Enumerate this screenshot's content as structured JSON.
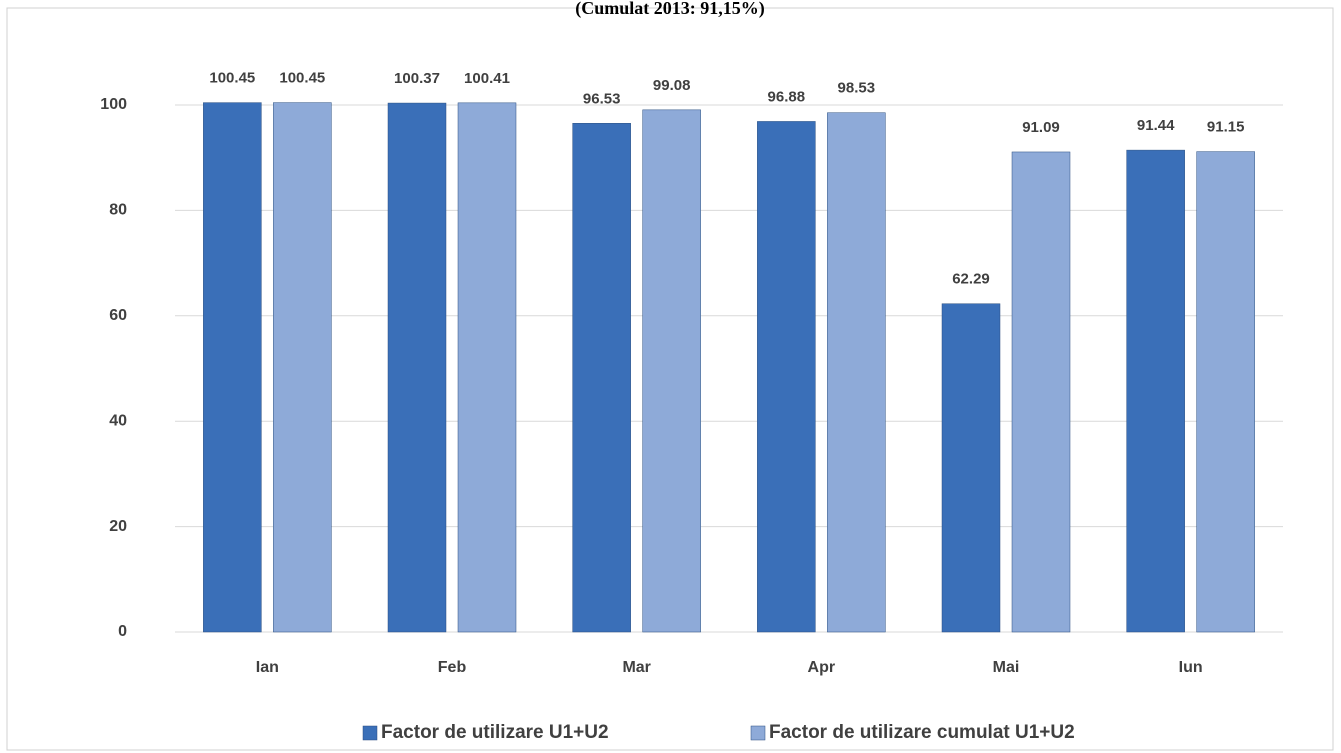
{
  "chart_data": {
    "type": "bar",
    "title": "(Cumulat 2013: 91,15%)",
    "categories": [
      "Ian",
      "Feb",
      "Mar",
      "Apr",
      "Mai",
      "Iun"
    ],
    "series": [
      {
        "name": "Factor de utilizare U1+U2",
        "color": "#3a6fb8",
        "values": [
          100.45,
          100.37,
          96.53,
          96.88,
          62.29,
          91.44
        ]
      },
      {
        "name": "Factor de utilizare cumulat U1+U2",
        "color": "#8eaad8",
        "values": [
          100.45,
          100.41,
          99.08,
          98.53,
          91.09,
          91.15
        ]
      }
    ],
    "ylim": [
      0,
      100
    ],
    "yticks": [
      0,
      20,
      40,
      60,
      80,
      100
    ],
    "grid": true,
    "legend": "bottom"
  }
}
